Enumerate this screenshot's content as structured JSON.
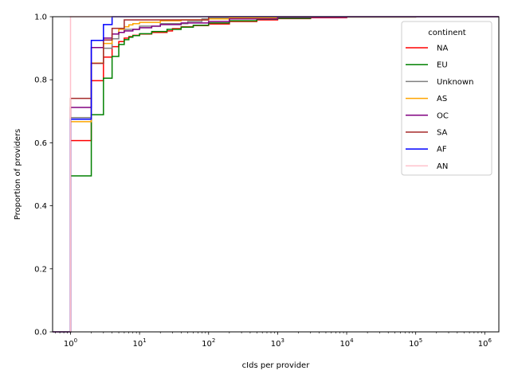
{
  "chart_data": {
    "type": "line",
    "step": true,
    "xscale": "log",
    "xlim": [
      0.55,
      1600000
    ],
    "ylim": [
      0.0,
      1.0
    ],
    "xlabel": "cIds per provider",
    "ylabel": "Proportion of providers",
    "grid": false,
    "x_ticks": [
      {
        "value": 1,
        "base": "10",
        "exp": "0"
      },
      {
        "value": 10,
        "base": "10",
        "exp": "1"
      },
      {
        "value": 100,
        "base": "10",
        "exp": "2"
      },
      {
        "value": 1000,
        "base": "10",
        "exp": "3"
      },
      {
        "value": 10000,
        "base": "10",
        "exp": "4"
      },
      {
        "value": 100000,
        "base": "10",
        "exp": "5"
      },
      {
        "value": 1000000,
        "base": "10",
        "exp": "6"
      }
    ],
    "y_ticks": [
      "0.0",
      "0.2",
      "0.4",
      "0.6",
      "0.8",
      "1.0"
    ],
    "legend": {
      "title": "continent",
      "placement": "top-right",
      "entries": [
        "NA",
        "EU",
        "Unknown",
        "AS",
        "OC",
        "SA",
        "AF",
        "AN"
      ]
    },
    "series": [
      {
        "name": "NA",
        "color": "#ff0000",
        "x": [
          1,
          2,
          3,
          4,
          5,
          6,
          7,
          8,
          10,
          15,
          25,
          30,
          40,
          60,
          100,
          200,
          500,
          1000,
          3000,
          10000,
          100000,
          1000000
        ],
        "y": [
          0.607,
          0.797,
          0.872,
          0.905,
          0.921,
          0.932,
          0.937,
          0.941,
          0.945,
          0.95,
          0.955,
          0.962,
          0.968,
          0.972,
          0.977,
          0.985,
          0.99,
          0.994,
          0.997,
          0.999,
          1.0,
          1.0
        ]
      },
      {
        "name": "EU",
        "color": "#008000",
        "x": [
          1,
          2,
          3,
          4,
          5,
          6,
          7,
          8,
          10,
          15,
          25,
          40,
          60,
          100,
          200,
          500,
          1000,
          3000,
          10000,
          100000
        ],
        "y": [
          0.495,
          0.689,
          0.805,
          0.874,
          0.912,
          0.927,
          0.935,
          0.94,
          0.946,
          0.953,
          0.96,
          0.967,
          0.973,
          0.98,
          0.987,
          0.992,
          0.995,
          0.998,
          0.999,
          1.0
        ]
      },
      {
        "name": "Unknown",
        "color": "#808080",
        "x": [
          1,
          2,
          3,
          4,
          5,
          6,
          10,
          20,
          50,
          80,
          100,
          200,
          1000,
          10000
        ],
        "y": [
          0.68,
          0.853,
          0.9,
          0.93,
          0.95,
          0.96,
          0.97,
          0.978,
          0.985,
          0.993,
          0.996,
          0.998,
          1.0,
          1.0
        ]
      },
      {
        "name": "AS",
        "color": "#ffa500",
        "x": [
          1,
          2,
          3,
          4,
          5,
          6,
          7,
          8,
          10,
          20,
          40,
          100,
          200,
          1000,
          10000
        ],
        "y": [
          0.667,
          0.853,
          0.915,
          0.945,
          0.96,
          0.968,
          0.974,
          0.978,
          0.982,
          0.987,
          0.99,
          0.993,
          0.996,
          0.999,
          1.0
        ]
      },
      {
        "name": "OC",
        "color": "#800080",
        "x": [
          1,
          2,
          3,
          4,
          5,
          6,
          8,
          10,
          15,
          20,
          40,
          100,
          200,
          1000,
          10000
        ],
        "y": [
          0.712,
          0.902,
          0.932,
          0.945,
          0.95,
          0.955,
          0.96,
          0.965,
          0.97,
          0.975,
          0.98,
          0.985,
          0.993,
          0.998,
          1.0
        ]
      },
      {
        "name": "SA",
        "color": "#a52a2a",
        "x": [
          1,
          2,
          3,
          4,
          6,
          100,
          10000
        ],
        "y": [
          0.741,
          0.852,
          0.926,
          0.963,
          0.99,
          1.0,
          1.0
        ]
      },
      {
        "name": "AF",
        "color": "#0000ff",
        "x": [
          1,
          2,
          3,
          4,
          10,
          100
        ],
        "y": [
          0.675,
          0.925,
          0.975,
          1.0,
          1.0,
          1.0
        ]
      },
      {
        "name": "AN",
        "color": "#ffc0cb",
        "x": [
          1,
          1000000
        ],
        "y": [
          1.0,
          1.0
        ]
      }
    ]
  }
}
